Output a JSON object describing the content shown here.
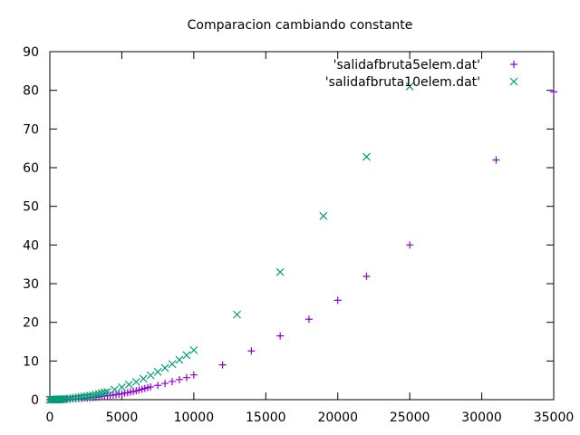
{
  "chart_data": {
    "type": "scatter",
    "title": "Comparacion cambiando constante",
    "xlabel": "",
    "ylabel": "",
    "xlim": [
      0,
      35000
    ],
    "ylim": [
      0,
      90
    ],
    "xticks": [
      0,
      5000,
      10000,
      15000,
      20000,
      25000,
      30000,
      35000
    ],
    "yticks": [
      0,
      10,
      20,
      30,
      40,
      50,
      60,
      70,
      80,
      90
    ],
    "grid": false,
    "legend_position": "top-right",
    "series": [
      {
        "name": "'salidafbruta5elem.dat'",
        "marker": "plus",
        "color": "#9400d3",
        "x": [
          0,
          100,
          200,
          300,
          400,
          500,
          600,
          700,
          800,
          900,
          1000,
          1200,
          1400,
          1600,
          1800,
          2000,
          2200,
          2400,
          2600,
          2800,
          3000,
          3200,
          3400,
          3600,
          3800,
          4000,
          4200,
          4400,
          4600,
          4800,
          5000,
          5200,
          5400,
          5600,
          5800,
          6000,
          6200,
          6400,
          6600,
          6800,
          7000,
          7500,
          8000,
          8500,
          9000,
          9500,
          10000,
          12000,
          14000,
          16000,
          18000,
          20000,
          22000,
          25000,
          31000,
          35000
        ],
        "y": [
          0.0,
          0.0,
          0.0,
          0.0,
          0.0,
          0.0,
          0.0,
          0.0,
          0.0,
          0.0,
          0.1,
          0.1,
          0.1,
          0.2,
          0.2,
          0.3,
          0.3,
          0.4,
          0.4,
          0.5,
          0.5,
          0.6,
          0.7,
          0.8,
          0.9,
          1.0,
          1.1,
          1.2,
          1.3,
          1.4,
          1.5,
          1.7,
          1.8,
          2.0,
          2.1,
          2.3,
          2.5,
          2.7,
          2.9,
          3.1,
          3.3,
          3.7,
          4.2,
          4.7,
          5.2,
          5.7,
          6.4,
          9.0,
          12.6,
          16.5,
          20.8,
          25.7,
          31.9,
          40.0,
          62.0,
          79.6
        ]
      },
      {
        "name": "'salidafbruta10elem.dat'",
        "marker": "cross",
        "color": "#009e73",
        "x": [
          0,
          100,
          200,
          300,
          400,
          500,
          600,
          700,
          800,
          900,
          1000,
          1200,
          1400,
          1600,
          1800,
          2000,
          2200,
          2400,
          2600,
          2800,
          3000,
          3200,
          3400,
          3600,
          3800,
          4000,
          4500,
          5000,
          5500,
          6000,
          6500,
          7000,
          7500,
          8000,
          8500,
          9000,
          9500,
          10000,
          13000,
          16000,
          19000,
          22000,
          25000
        ],
        "y": [
          0.0,
          0.0,
          0.0,
          0.0,
          0.0,
          0.1,
          0.1,
          0.1,
          0.1,
          0.1,
          0.2,
          0.2,
          0.3,
          0.4,
          0.5,
          0.6,
          0.7,
          0.8,
          0.9,
          1.0,
          1.1,
          1.3,
          1.5,
          1.7,
          1.9,
          2.0,
          2.6,
          3.2,
          3.9,
          4.6,
          5.4,
          6.3,
          7.2,
          8.2,
          9.2,
          10.3,
          11.5,
          12.8,
          22.0,
          33.0,
          47.5,
          62.8,
          81.0
        ]
      }
    ]
  }
}
